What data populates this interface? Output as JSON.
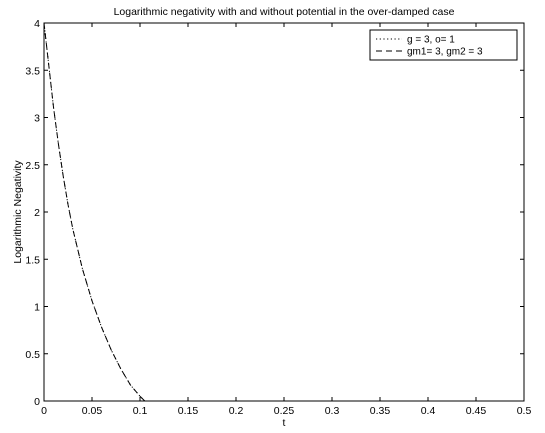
{
  "chart_data": {
    "type": "line",
    "title": "Logarithmic negativity with and without potential in the over-damped case",
    "xlabel": "t",
    "ylabel": "Logarithmic Negativity",
    "xlim": [
      0,
      0.5
    ],
    "ylim": [
      0,
      4
    ],
    "xticks": [
      0,
      0.05,
      0.1,
      0.15,
      0.2,
      0.25,
      0.3,
      0.35,
      0.4,
      0.45,
      0.5
    ],
    "xtick_labels": [
      "0",
      "0.05",
      "0.1",
      "0.15",
      "0.2",
      "0.25",
      "0.3",
      "0.35",
      "0.4",
      "0.45",
      "0.5"
    ],
    "yticks": [
      0,
      0.5,
      1,
      1.5,
      2,
      2.5,
      3,
      3.5,
      4
    ],
    "ytick_labels": [
      "0",
      "0.5",
      "1",
      "1.5",
      "2",
      "2.5",
      "3",
      "3.5",
      "4"
    ],
    "grid": false,
    "legend_position": "top-right",
    "series": [
      {
        "name": "g = 3, o= 1",
        "style": "dotted",
        "color": "#000000",
        "x": [
          0,
          0.005,
          0.01,
          0.015,
          0.02,
          0.025,
          0.03,
          0.04,
          0.05,
          0.06,
          0.07,
          0.08,
          0.09,
          0.1,
          0.105,
          0.11,
          0.12,
          0.15,
          0.2,
          0.25,
          0.3,
          0.35,
          0.4,
          0.45,
          0.5
        ],
        "y": [
          4.0,
          3.55,
          3.1,
          2.72,
          2.38,
          2.08,
          1.82,
          1.4,
          1.06,
          0.78,
          0.54,
          0.34,
          0.17,
          0.05,
          0.0,
          0.0,
          0.0,
          0.0,
          0.0,
          0.0,
          0.0,
          0.0,
          0.0,
          0.0,
          0.0
        ]
      },
      {
        "name": "gm1= 3, gm2 = 3",
        "style": "dashed",
        "color": "#000000",
        "x": [
          0,
          0.005,
          0.01,
          0.015,
          0.02,
          0.025,
          0.03,
          0.04,
          0.05,
          0.06,
          0.07,
          0.08,
          0.09,
          0.1,
          0.105,
          0.11,
          0.12,
          0.15,
          0.2,
          0.25,
          0.3,
          0.35,
          0.4,
          0.45,
          0.5
        ],
        "y": [
          4.0,
          3.55,
          3.1,
          2.72,
          2.38,
          2.08,
          1.82,
          1.4,
          1.06,
          0.78,
          0.54,
          0.34,
          0.17,
          0.05,
          0.0,
          0.0,
          0.0,
          0.0,
          0.0,
          0.0,
          0.0,
          0.0,
          0.0,
          0.0,
          0.0
        ]
      }
    ]
  }
}
